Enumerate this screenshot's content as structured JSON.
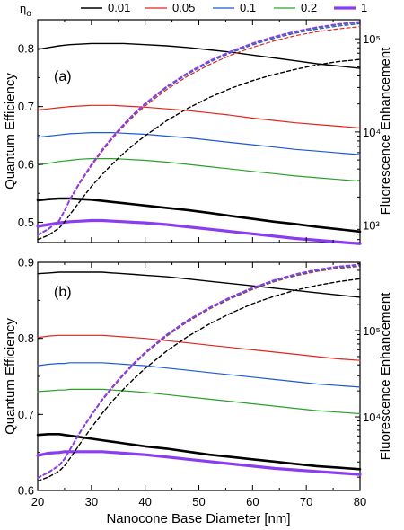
{
  "legend": {
    "title_main": "η",
    "title_sub": "o",
    "entries": [
      {
        "label": "0.01",
        "color": "#000000",
        "width": 1.4
      },
      {
        "label": "0.05",
        "color": "#e3231d",
        "width": 1.2
      },
      {
        "label": "0.1",
        "color": "#1f57d6",
        "width": 1.2
      },
      {
        "label": "0.2",
        "color": "#2aa02a",
        "width": 1.2
      },
      {
        "label": "1",
        "color": "#8a3cf0",
        "width": 3.2
      }
    ]
  },
  "chart_data": [
    {
      "type": "line",
      "panel_label": "(a)",
      "xlabel": "Nanocone Base Diameter [nm]",
      "ylabel": "Quantum Efficiency",
      "y2label": "Fluorescence Enhancement",
      "xlim": [
        20,
        80
      ],
      "ylim": [
        0.465,
        0.85
      ],
      "y2_scale": "log",
      "y2lim": [
        650,
        160000
      ],
      "x_ticks": [
        20,
        30,
        40,
        50,
        60,
        70,
        80
      ],
      "y_ticks": [
        0.5,
        0.6,
        0.7,
        0.8
      ],
      "y2_ticks": [
        1000,
        10000,
        100000
      ],
      "y2_tick_labels": [
        "10³",
        "10⁴",
        "10⁵"
      ],
      "grid": false,
      "legend_position": "top",
      "x": [
        20,
        22,
        24,
        25,
        26,
        28,
        30,
        32,
        34,
        36,
        38,
        40,
        44,
        48,
        52,
        56,
        60,
        64,
        68,
        72,
        76,
        80
      ],
      "series": [
        {
          "name": "0.01",
          "axis": "left",
          "style": "solid",
          "color": "#000000",
          "width": 1.4,
          "values": [
            0.799,
            0.802,
            0.805,
            0.806,
            0.807,
            0.808,
            0.809,
            0.809,
            0.809,
            0.809,
            0.808,
            0.807,
            0.805,
            0.802,
            0.798,
            0.794,
            0.789,
            0.784,
            0.779,
            0.774,
            0.77,
            0.766
          ]
        },
        {
          "name": "0.05",
          "axis": "left",
          "style": "solid",
          "color": "#e3231d",
          "width": 1.2,
          "values": [
            0.694,
            0.696,
            0.698,
            0.699,
            0.7,
            0.701,
            0.702,
            0.702,
            0.702,
            0.701,
            0.7,
            0.699,
            0.696,
            0.693,
            0.689,
            0.685,
            0.68,
            0.676,
            0.672,
            0.669,
            0.666,
            0.663
          ]
        },
        {
          "name": "0.1",
          "axis": "left",
          "style": "solid",
          "color": "#1f57d6",
          "width": 1.2,
          "values": [
            0.647,
            0.649,
            0.651,
            0.652,
            0.653,
            0.654,
            0.655,
            0.655,
            0.655,
            0.654,
            0.653,
            0.652,
            0.649,
            0.646,
            0.642,
            0.638,
            0.634,
            0.63,
            0.626,
            0.623,
            0.62,
            0.617
          ]
        },
        {
          "name": "0.2",
          "axis": "left",
          "style": "solid",
          "color": "#2aa02a",
          "width": 1.2,
          "values": [
            0.599,
            0.602,
            0.605,
            0.606,
            0.607,
            0.609,
            0.61,
            0.61,
            0.61,
            0.609,
            0.608,
            0.607,
            0.604,
            0.6,
            0.596,
            0.592,
            0.588,
            0.584,
            0.58,
            0.577,
            0.574,
            0.571
          ]
        },
        {
          "name": "1",
          "axis": "left",
          "style": "solid",
          "color": "#000000",
          "width": 2.6,
          "values": [
            0.538,
            0.54,
            0.541,
            0.541,
            0.541,
            0.54,
            0.539,
            0.537,
            0.535,
            0.533,
            0.531,
            0.529,
            0.525,
            0.521,
            0.516,
            0.511,
            0.506,
            0.501,
            0.497,
            0.492,
            0.488,
            0.484
          ]
        },
        {
          "name": "1",
          "axis": "left",
          "style": "solid",
          "color": "#8a3cf0",
          "width": 3.2,
          "values": [
            0.493,
            0.496,
            0.499,
            0.5,
            0.501,
            0.502,
            0.503,
            0.503,
            0.502,
            0.501,
            0.5,
            0.499,
            0.496,
            0.492,
            0.488,
            0.484,
            0.48,
            0.476,
            0.472,
            0.469,
            0.466,
            0.463
          ]
        },
        {
          "name": "0.01",
          "axis": "right",
          "style": "dashed",
          "color": "#000000",
          "width": 1.4,
          "values": [
            700,
            780,
            930,
            1080,
            1300,
            1850,
            2600,
            3500,
            4600,
            5900,
            7400,
            9100,
            13200,
            18000,
            23500,
            29500,
            35500,
            41500,
            47000,
            52500,
            57000,
            60000
          ]
        },
        {
          "name": "0.05",
          "axis": "right",
          "style": "dashed",
          "color": "#e3231d",
          "width": 1.2,
          "values": [
            780,
            900,
            1100,
            1400,
            1850,
            2900,
            4300,
            6200,
            8600,
            11500,
            15000,
            19000,
            28500,
            40000,
            53000,
            67000,
            81000,
            95000,
            108000,
            119000,
            128000,
            135000
          ]
        },
        {
          "name": "0.1",
          "axis": "right",
          "style": "dashed",
          "color": "#1f57d6",
          "width": 1.2,
          "values": [
            780,
            900,
            1110,
            1420,
            1880,
            2950,
            4400,
            6350,
            8800,
            11800,
            15500,
            19700,
            29800,
            42000,
            56000,
            71000,
            86000,
            101000,
            115000,
            127000,
            137000,
            145000
          ]
        },
        {
          "name": "0.2",
          "axis": "right",
          "style": "dashed",
          "color": "#2aa02a",
          "width": 1.2,
          "values": [
            780,
            905,
            1115,
            1425,
            1890,
            2970,
            4430,
            6400,
            8900,
            11950,
            15700,
            20000,
            30300,
            42800,
            57200,
            72500,
            88000,
            103500,
            118000,
            130500,
            141000,
            149000
          ]
        },
        {
          "name": "1",
          "axis": "right",
          "style": "dashed",
          "color": "#8a3cf0",
          "width": 1.8,
          "values": [
            785,
            910,
            1120,
            1430,
            1900,
            2990,
            4460,
            6450,
            8960,
            12050,
            15850,
            20200,
            30700,
            43400,
            58000,
            73600,
            89400,
            105200,
            120000,
            133000,
            143700,
            152000
          ]
        }
      ]
    },
    {
      "type": "line",
      "panel_label": "(b)",
      "xlabel": "Nanocone Base Diameter [nm]",
      "ylabel": "Quantum Efficiency",
      "y2label": "Fluorescence Enhancement",
      "xlim": [
        20,
        80
      ],
      "ylim": [
        0.6,
        0.9
      ],
      "y2_scale": "log",
      "y2lim": [
        1400,
        620000
      ],
      "x_ticks": [
        20,
        30,
        40,
        50,
        60,
        70,
        80
      ],
      "y_ticks": [
        0.6,
        0.7,
        0.8,
        0.9
      ],
      "y2_ticks": [
        10000,
        100000
      ],
      "y2_tick_labels": [
        "10⁴",
        "10⁵"
      ],
      "grid": false,
      "x": [
        20,
        22,
        24,
        25,
        26,
        28,
        30,
        32,
        34,
        36,
        38,
        40,
        44,
        48,
        52,
        56,
        60,
        64,
        68,
        72,
        76,
        80
      ],
      "series": [
        {
          "name": "0.01",
          "axis": "left",
          "style": "solid",
          "color": "#000000",
          "width": 1.4,
          "values": [
            0.885,
            0.886,
            0.887,
            0.887,
            0.887,
            0.887,
            0.887,
            0.887,
            0.886,
            0.885,
            0.884,
            0.883,
            0.881,
            0.878,
            0.875,
            0.872,
            0.869,
            0.866,
            0.863,
            0.86,
            0.857,
            0.854
          ]
        },
        {
          "name": "0.05",
          "axis": "left",
          "style": "solid",
          "color": "#e3231d",
          "width": 1.2,
          "values": [
            0.801,
            0.803,
            0.804,
            0.804,
            0.804,
            0.804,
            0.804,
            0.804,
            0.803,
            0.802,
            0.801,
            0.8,
            0.797,
            0.794,
            0.791,
            0.788,
            0.785,
            0.782,
            0.779,
            0.776,
            0.773,
            0.771
          ]
        },
        {
          "name": "0.1",
          "axis": "left",
          "style": "solid",
          "color": "#1f57d6",
          "width": 1.2,
          "values": [
            0.764,
            0.766,
            0.767,
            0.767,
            0.768,
            0.768,
            0.768,
            0.768,
            0.767,
            0.766,
            0.765,
            0.764,
            0.761,
            0.758,
            0.755,
            0.752,
            0.749,
            0.746,
            0.743,
            0.74,
            0.738,
            0.736
          ]
        },
        {
          "name": "0.2",
          "axis": "left",
          "style": "solid",
          "color": "#2aa02a",
          "width": 1.2,
          "values": [
            0.73,
            0.731,
            0.732,
            0.732,
            0.733,
            0.733,
            0.733,
            0.733,
            0.732,
            0.731,
            0.73,
            0.729,
            0.726,
            0.723,
            0.72,
            0.717,
            0.714,
            0.711,
            0.708,
            0.705,
            0.703,
            0.701
          ]
        },
        {
          "name": "1",
          "axis": "left",
          "style": "solid",
          "color": "#000000",
          "width": 2.6,
          "values": [
            0.673,
            0.674,
            0.674,
            0.673,
            0.672,
            0.67,
            0.668,
            0.666,
            0.664,
            0.662,
            0.66,
            0.658,
            0.655,
            0.651,
            0.647,
            0.644,
            0.641,
            0.638,
            0.635,
            0.632,
            0.63,
            0.628
          ]
        },
        {
          "name": "1",
          "axis": "left",
          "style": "solid",
          "color": "#8a3cf0",
          "width": 3.2,
          "values": [
            0.646,
            0.649,
            0.65,
            0.651,
            0.651,
            0.651,
            0.651,
            0.651,
            0.65,
            0.649,
            0.648,
            0.647,
            0.644,
            0.641,
            0.638,
            0.635,
            0.632,
            0.629,
            0.627,
            0.625,
            0.623,
            0.621
          ]
        },
        {
          "name": "0.01",
          "axis": "right",
          "style": "dashed",
          "color": "#000000",
          "width": 1.4,
          "values": [
            1800,
            2000,
            2350,
            2700,
            3300,
            5000,
            7500,
            11000,
            15500,
            21000,
            28000,
            36500,
            58000,
            86000,
            120000,
            160000,
            205000,
            250000,
            295000,
            335000,
            370000,
            400000
          ]
        },
        {
          "name": "0.05",
          "axis": "right",
          "style": "dashed",
          "color": "#e3231d",
          "width": 1.2,
          "values": [
            1950,
            2250,
            2700,
            3200,
            4100,
            6700,
            10300,
            15500,
            22000,
            30500,
            41000,
            54000,
            86000,
            128000,
            178000,
            236000,
            300000,
            368000,
            432000,
            486000,
            528000,
            555000
          ]
        },
        {
          "name": "0.1",
          "axis": "right",
          "style": "dashed",
          "color": "#1f57d6",
          "width": 1.2,
          "values": [
            1950,
            2260,
            2720,
            3220,
            4130,
            6760,
            10400,
            15650,
            22300,
            30900,
            41600,
            54800,
            87500,
            130000,
            181000,
            240000,
            305000,
            374000,
            439000,
            494000,
            537000,
            565000
          ]
        },
        {
          "name": "0.2",
          "axis": "right",
          "style": "dashed",
          "color": "#2aa02a",
          "width": 1.2,
          "values": [
            1960,
            2270,
            2730,
            3240,
            4160,
            6810,
            10480,
            15780,
            22500,
            31200,
            42000,
            55400,
            88500,
            131500,
            183000,
            243000,
            309000,
            379000,
            445000,
            501000,
            545000,
            574000
          ]
        },
        {
          "name": "1",
          "axis": "right",
          "style": "dashed",
          "color": "#8a3cf0",
          "width": 1.8,
          "values": [
            1970,
            2280,
            2750,
            3260,
            4190,
            6870,
            10570,
            15920,
            22700,
            31500,
            42500,
            56000,
            89600,
            133000,
            185500,
            246500,
            313500,
            385000,
            452000,
            509000,
            554000,
            584000
          ]
        }
      ]
    }
  ]
}
